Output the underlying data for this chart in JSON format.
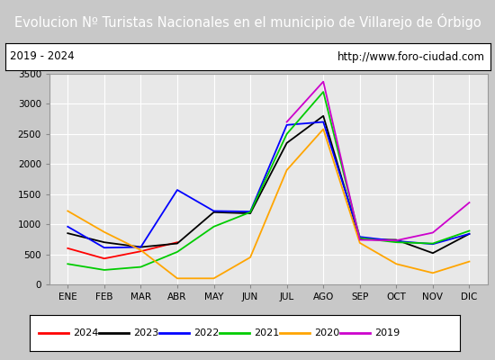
{
  "title": "Evolucion Nº Turistas Nacionales en el municipio de Villarejo de Órbigo",
  "subtitle_left": "2019 - 2024",
  "subtitle_right": "http://www.foro-ciudad.com",
  "title_bg": "#4a86c8",
  "title_color": "white",
  "months": [
    "ENE",
    "FEB",
    "MAR",
    "ABR",
    "MAY",
    "JUN",
    "JUL",
    "AGO",
    "SEP",
    "OCT",
    "NOV",
    "DIC"
  ],
  "ylim": [
    0,
    3500
  ],
  "yticks": [
    0,
    500,
    1000,
    1500,
    2000,
    2500,
    3000,
    3500
  ],
  "series": {
    "2024": {
      "color": "#ff0000",
      "linestyle": "-",
      "values": [
        600,
        430,
        550,
        700,
        null,
        null,
        null,
        null,
        null,
        null,
        null,
        null
      ]
    },
    "2023": {
      "color": "#000000",
      "linestyle": "-",
      "values": [
        850,
        700,
        620,
        680,
        1200,
        1180,
        2350,
        2800,
        750,
        740,
        520,
        840
      ]
    },
    "2022": {
      "color": "#0000ff",
      "linestyle": "-",
      "values": [
        960,
        610,
        620,
        1570,
        1220,
        1210,
        2650,
        2700,
        790,
        720,
        670,
        840
      ]
    },
    "2021": {
      "color": "#00cc00",
      "linestyle": "-",
      "values": [
        340,
        240,
        290,
        540,
        960,
        1200,
        2500,
        3200,
        770,
        700,
        680,
        890
      ]
    },
    "2020": {
      "color": "#ffa500",
      "linestyle": "-",
      "values": [
        1220,
        870,
        570,
        100,
        100,
        450,
        1900,
        2580,
        690,
        340,
        190,
        380
      ]
    },
    "2019": {
      "color": "#cc00cc",
      "linestyle": "-",
      "values": [
        null,
        null,
        null,
        null,
        null,
        null,
        2700,
        3370,
        740,
        730,
        860,
        1360
      ]
    }
  },
  "legend_order": [
    "2024",
    "2023",
    "2022",
    "2021",
    "2020",
    "2019"
  ],
  "outer_bg": "#c8c8c8",
  "inner_bg": "#e8e8e8",
  "plot_bg": "#e8e8e8",
  "grid_color": "#ffffff"
}
